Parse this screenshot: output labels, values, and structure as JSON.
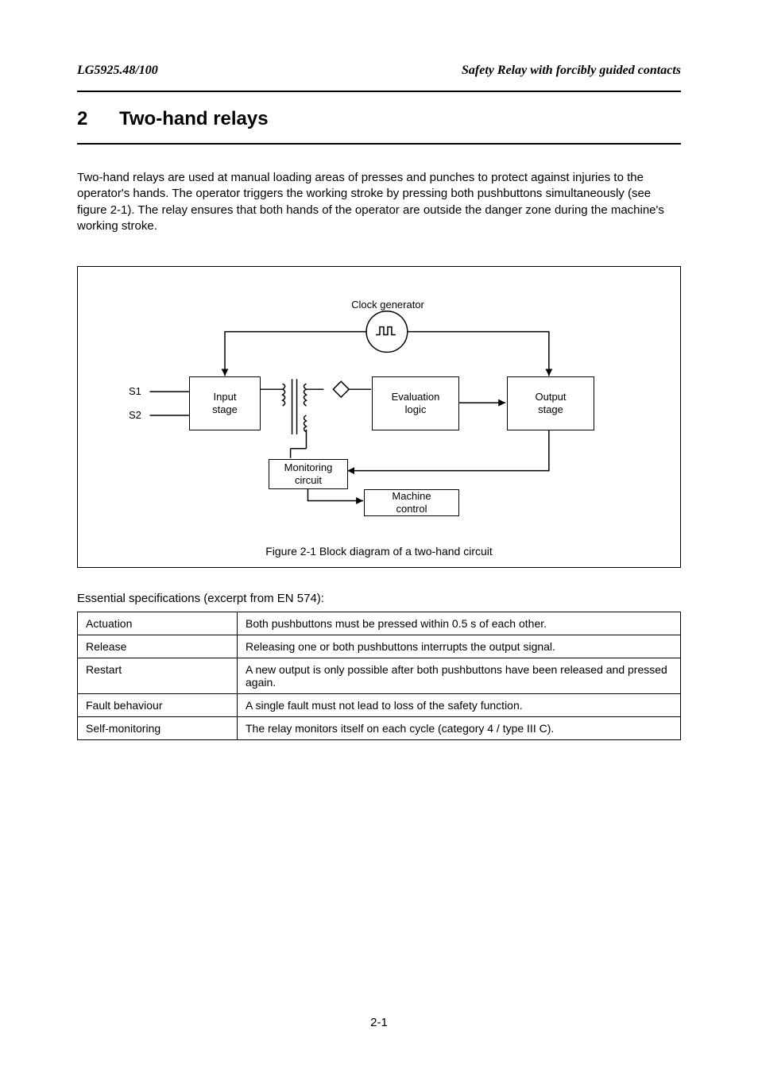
{
  "header": {
    "model": "LG5925.48/100",
    "right_title": "Safety Relay with forcibly guided contacts"
  },
  "section": {
    "number": "2",
    "title": "Two-hand relays"
  },
  "intro": "Two-hand relays are used at manual loading areas of presses and punches to protect against injuries to the operator's hands. The operator triggers the working stroke by pressing both pushbuttons simultaneously (see figure 2-1). The relay ensures that both hands of the operator are outside the danger zone during the machine's working stroke.",
  "figure": {
    "caption": "Figure 2-1 Block diagram of a two-hand circuit",
    "labels": {
      "s1": "S1",
      "s2": "S2",
      "clock": "Clock generator"
    },
    "blocks": {
      "input": "Input\nstage",
      "eval": "Evaluation\nlogic",
      "output": "Output\nstage",
      "monitor": "Monitoring\ncircuit",
      "machine": "Machine\ncontrol"
    },
    "style": {
      "stroke": "#000000",
      "stroke_width": 1.5,
      "bg": "#ffffff"
    }
  },
  "table": {
    "title": "Essential specifications (excerpt from EN 574):",
    "rows": [
      [
        "Actuation",
        "Both pushbuttons must be pressed within 0.5 s of each other."
      ],
      [
        "Release",
        "Releasing one or both pushbuttons interrupts the output signal."
      ],
      [
        "Restart",
        "A new output is only possible after both pushbuttons have been released and pressed again."
      ],
      [
        "Fault behaviour",
        "A single fault must not lead to loss of the safety function."
      ],
      [
        "Self-monitoring",
        "The relay monitors itself on each cycle (category 4 / type III C)."
      ]
    ]
  },
  "page_number": "2-1"
}
